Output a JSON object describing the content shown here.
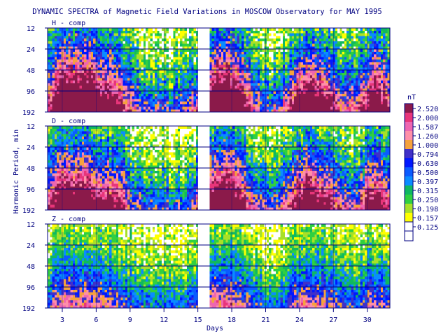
{
  "chart_data": {
    "type": "heatmap",
    "title": "DYNAMIC SPECTRA of Magnetic Field Variations in MOSCOW Observatory for MAY 1995",
    "xlabel": "Days",
    "ylabel": "Harmonic Period, min",
    "x_ticks": [
      "3",
      "6",
      "9",
      "12",
      "15",
      "18",
      "21",
      "24",
      "27",
      "30"
    ],
    "x_tick_values": [
      3,
      6,
      9,
      12,
      15,
      18,
      21,
      24,
      27,
      30
    ],
    "xlim": [
      1.7,
      32.0
    ],
    "data_gap_days": [
      15.0,
      16.0
    ],
    "y_ticks": [
      "12",
      "24",
      "48",
      "96",
      "192"
    ],
    "y_tick_values": [
      12,
      24,
      48,
      96,
      192
    ],
    "y_scale": "log2",
    "ylim": [
      12,
      192
    ],
    "panels": [
      {
        "label": "H - comp",
        "activity": 1.0
      },
      {
        "label": "D - comp",
        "activity": 0.92
      },
      {
        "label": "Z - comp",
        "activity": 0.5
      }
    ],
    "colorbar": {
      "unit": "nT",
      "levels": [
        "2.520",
        "2.000",
        "1.587",
        "1.260",
        "1.000",
        "0.794",
        "0.630",
        "0.500",
        "0.397",
        "0.315",
        "0.250",
        "0.198",
        "0.157",
        "0.125"
      ],
      "colors": [
        "#8b1a4a",
        "#e8357a",
        "#ee66b0",
        "#ff8fa8",
        "#f5a23c",
        "#4030c8",
        "#0018ff",
        "#0a5cff",
        "#0a8cff",
        "#10b860",
        "#30d040",
        "#a8e028",
        "#ffff00",
        "#ffffff"
      ]
    },
    "grid": true,
    "legend": "right"
  }
}
